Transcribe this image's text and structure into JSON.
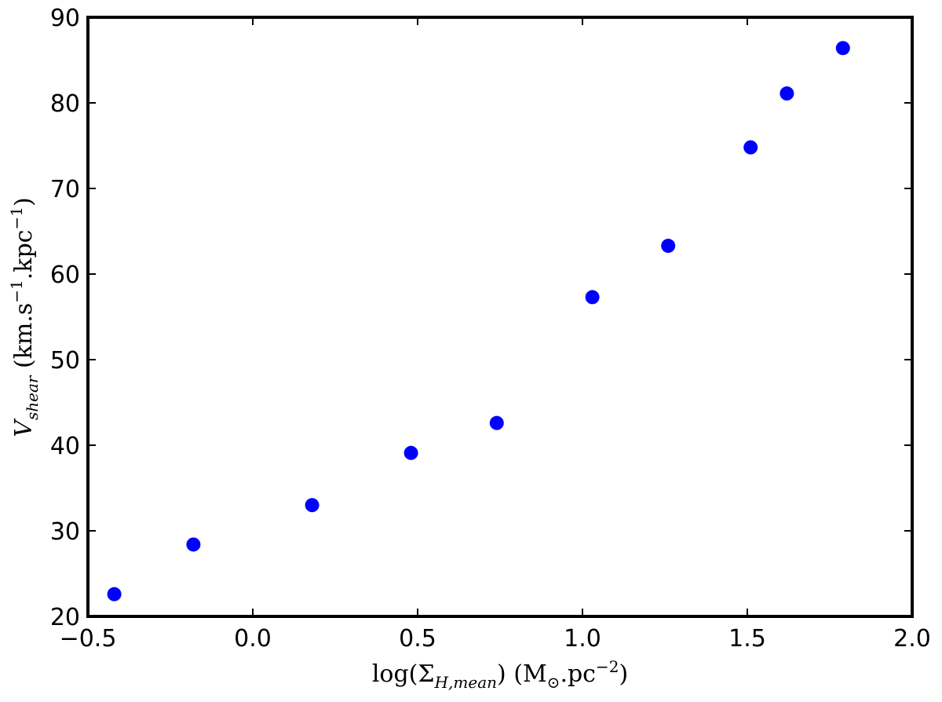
{
  "chart_data": {
    "type": "scatter",
    "xlabel": {
      "prefix": "log(Σ",
      "sub": "H,mean",
      "unit_open": ") (M",
      "unit_sub": "⊙",
      "unit_mid": ".pc",
      "unit_sup": "−2",
      "unit_close": ")"
    },
    "ylabel": {
      "symbol": "V",
      "sub": "shear",
      "unit_open": " (km.s",
      "sup1": "−1",
      "unit_mid": ".kpc",
      "sup2": "−1",
      "unit_close": ")"
    },
    "xlim": [
      -0.5,
      2.0
    ],
    "ylim": [
      20,
      90
    ],
    "xticks": [
      -0.5,
      0.0,
      0.5,
      1.0,
      1.5,
      2.0
    ],
    "xtick_labels": [
      "−0.5",
      "0.0",
      "0.5",
      "1.0",
      "1.5",
      "2.0"
    ],
    "yticks": [
      20,
      30,
      40,
      50,
      60,
      70,
      80,
      90
    ],
    "ytick_labels": [
      "20",
      "30",
      "40",
      "50",
      "60",
      "70",
      "80",
      "90"
    ],
    "grid": false,
    "marker_color": "#0000ff",
    "points": [
      {
        "x": -0.42,
        "y": 22.6
      },
      {
        "x": -0.18,
        "y": 28.4
      },
      {
        "x": 0.18,
        "y": 33.0
      },
      {
        "x": 0.48,
        "y": 39.1
      },
      {
        "x": 0.74,
        "y": 42.6
      },
      {
        "x": 1.03,
        "y": 57.3
      },
      {
        "x": 1.26,
        "y": 63.3
      },
      {
        "x": 1.51,
        "y": 74.8
      },
      {
        "x": 1.62,
        "y": 81.1
      },
      {
        "x": 1.79,
        "y": 86.4
      }
    ]
  }
}
